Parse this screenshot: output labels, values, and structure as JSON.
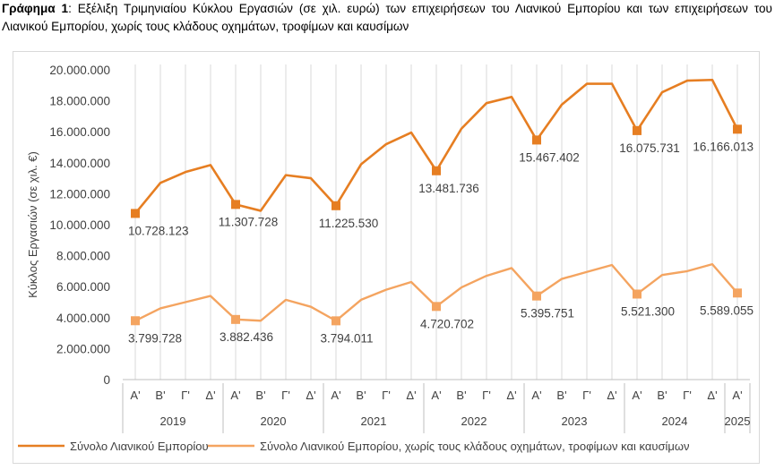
{
  "caption": {
    "prefix": "Γράφημα 1",
    "text": ": Εξέλιξη Τριμηνιαίου Κύκλου Εργασιών (σε χιλ. ευρώ) των επιχειρήσεων του Λιανικού Εμπορίου και των επιχειρήσεων του Λιανικού Εμπορίου, χωρίς τους κλάδους οχημάτων, τροφίμων και καυσίμων"
  },
  "chart_data": {
    "type": "line",
    "ylabel": "Κύκλος Εργασιών (σε χιλ. €)",
    "ylim": [
      0,
      20000000
    ],
    "y_ticks": [
      0,
      2000000,
      4000000,
      6000000,
      8000000,
      10000000,
      12000000,
      14000000,
      16000000,
      18000000,
      20000000
    ],
    "y_tick_labels": [
      "0",
      "2.000.000",
      "4.000.000",
      "6.000.000",
      "8.000.000",
      "10.000.000",
      "12.000.000",
      "14.000.000",
      "16.000.000",
      "18.000.000",
      "20.000.000"
    ],
    "grid": "vertical",
    "categories": [
      "Α'",
      "Β'",
      "Γ'",
      "Δ'",
      "Α'",
      "Β'",
      "Γ'",
      "Δ'",
      "Α'",
      "Β'",
      "Γ'",
      "Δ'",
      "Α'",
      "Β'",
      "Γ'",
      "Δ'",
      "Α'",
      "Β'",
      "Γ'",
      "Δ'",
      "Α'",
      "Β'",
      "Γ'",
      "Δ'",
      "Α'"
    ],
    "years": [
      {
        "label": "2019",
        "count": 4
      },
      {
        "label": "2020",
        "count": 4
      },
      {
        "label": "2021",
        "count": 4
      },
      {
        "label": "2022",
        "count": 4
      },
      {
        "label": "2023",
        "count": 4
      },
      {
        "label": "2024",
        "count": 4
      },
      {
        "label": "2025",
        "count": 1
      }
    ],
    "series": [
      {
        "name": "Σύνολο Λιανικού Εμπορίου",
        "color": "#E67E22",
        "values": [
          10728123,
          12700000,
          13400000,
          13850000,
          11307728,
          10900000,
          13200000,
          13000000,
          11225530,
          13900000,
          15200000,
          15950000,
          13481736,
          16200000,
          17850000,
          18250000,
          15467402,
          17750000,
          19100000,
          19100000,
          16075731,
          18550000,
          19300000,
          19350000,
          16166013
        ],
        "labeled_points": [
          {
            "index": 0,
            "text": "10.728.123"
          },
          {
            "index": 4,
            "text": "11.307.728"
          },
          {
            "index": 8,
            "text": "11.225.530"
          },
          {
            "index": 12,
            "text": "13.481.736"
          },
          {
            "index": 16,
            "text": "15.467.402"
          },
          {
            "index": 20,
            "text": "16.075.731"
          },
          {
            "index": 24,
            "text": "16.166.013"
          }
        ]
      },
      {
        "name": "Σύνολο Λιανικού Εμπορίου, χωρίς τους κλάδους οχημάτων, τροφίμων και καυσίμων",
        "color": "#F4A460",
        "values": [
          3799728,
          4600000,
          5000000,
          5400000,
          3882436,
          3800000,
          5150000,
          4700000,
          3794011,
          5150000,
          5800000,
          6300000,
          4720702,
          5950000,
          6700000,
          7200000,
          5395751,
          6500000,
          6950000,
          7400000,
          5521300,
          6750000,
          7000000,
          7450000,
          5589055
        ],
        "labeled_points": [
          {
            "index": 0,
            "text": "3.799.728"
          },
          {
            "index": 4,
            "text": "3.882.436"
          },
          {
            "index": 8,
            "text": "3.794.011"
          },
          {
            "index": 12,
            "text": "4.720.702"
          },
          {
            "index": 16,
            "text": "5.395.751"
          },
          {
            "index": 20,
            "text": "5.521.300"
          },
          {
            "index": 24,
            "text": "5.589.055"
          }
        ]
      }
    ]
  }
}
